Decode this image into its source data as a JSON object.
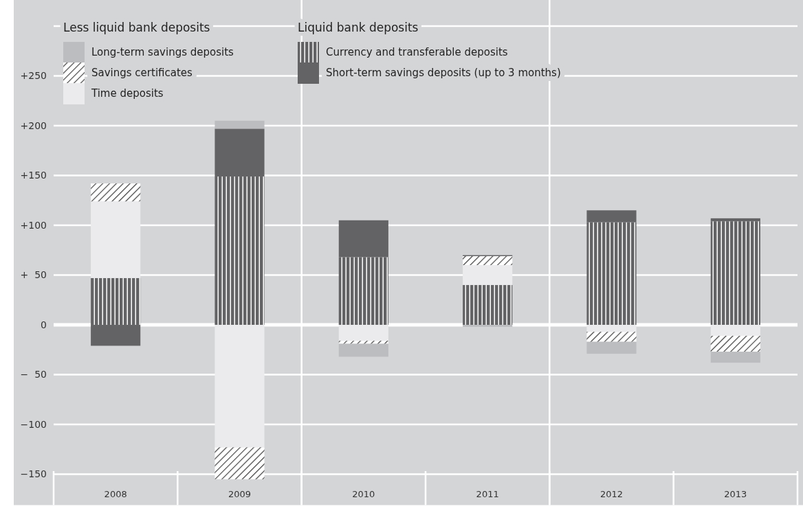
{
  "chart_data": {
    "type": "bar",
    "stacked": true,
    "categories": [
      "2008",
      "2009",
      "2010",
      "2011",
      "2012",
      "2013"
    ],
    "series": [
      {
        "name": "Currency and transferable deposits",
        "color": "#636365",
        "values": [
          47,
          149,
          68,
          40,
          103,
          104
        ]
      },
      {
        "name": "Time deposits",
        "color": "#ebebed",
        "values": [
          77,
          -123,
          -16,
          20,
          -7,
          -11
        ]
      },
      {
        "name": "Savings certificates",
        "color": "#404040",
        "values": [
          18,
          -32,
          -3,
          9,
          -10,
          -16
        ]
      },
      {
        "name": "Short-term savings deposits (up to 3 months)",
        "color": "#636365",
        "values": [
          -21,
          48,
          37,
          1,
          12,
          3
        ]
      },
      {
        "name": "Long-term savings deposits",
        "color": "#bcbdc0",
        "values": [
          null,
          8,
          -13,
          -2,
          -12,
          -11
        ]
      }
    ],
    "annotations": [
      "Less liquid bank deposits",
      "Liquid bank deposits"
    ],
    "ylim": [
      -181,
      300
    ],
    "yticks": [
      {
        "value": -150,
        "label": "−150"
      },
      {
        "value": -100,
        "label": "−100"
      },
      {
        "value": -50,
        "label": "−  50"
      },
      0,
      {
        "value": 50,
        "label": "+  50"
      },
      {
        "value": 100,
        "label": "+100"
      },
      {
        "value": 150,
        "label": "+150"
      },
      {
        "value": 200,
        "label": "+200"
      },
      {
        "value": 250,
        "label": "+250"
      },
      {
        "value": 300,
        "label": null
      }
    ],
    "grid": "y",
    "legend": "top left"
  }
}
